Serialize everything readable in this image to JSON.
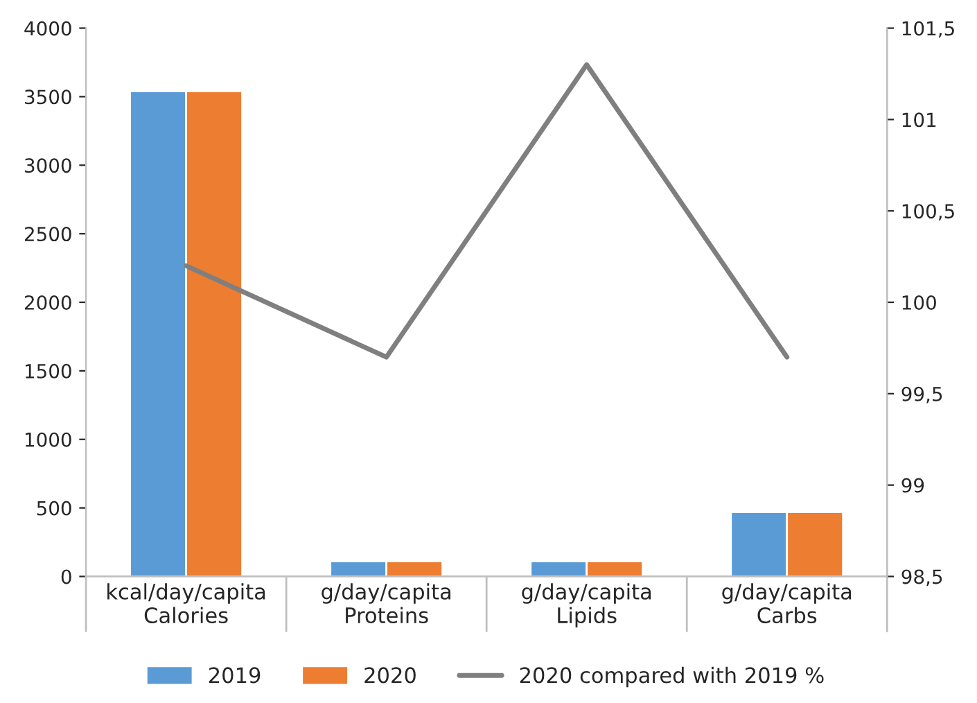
{
  "chart_data": {
    "type": "bar",
    "categories": [
      "kcal/day/capita\nCalories",
      "g/day/capita\nProteins",
      "g/day/capita\nLipids",
      "g/day/capita\nCarbs"
    ],
    "series": [
      {
        "name": "2019",
        "color": "#5b9bd5",
        "values": [
          3540,
          110,
          110,
          470
        ]
      },
      {
        "name": "2020",
        "color": "#ed7d31",
        "values": [
          3540,
          110,
          110,
          470
        ]
      },
      {
        "name": "2020 compared with 2019 %",
        "type": "line",
        "axis": "y2",
        "color": "#7f7f7f",
        "values": [
          100.2,
          99.7,
          101.3,
          99.7
        ]
      }
    ],
    "ylim": [
      0,
      4000
    ],
    "yticks": [
      0,
      500,
      1000,
      1500,
      2000,
      2500,
      3000,
      3500,
      4000
    ],
    "y2lim": [
      98.5,
      101.5
    ],
    "y2ticks": [
      {
        "value": 98.5,
        "label": "98,5"
      },
      99,
      {
        "value": 99.5,
        "label": "99,5"
      },
      100,
      {
        "value": 100.5,
        "label": "100,5"
      },
      101,
      {
        "value": 101.5,
        "label": "101,5"
      }
    ],
    "grid": false,
    "legend": "bottom",
    "marker": "none",
    "line_style": "solid"
  }
}
